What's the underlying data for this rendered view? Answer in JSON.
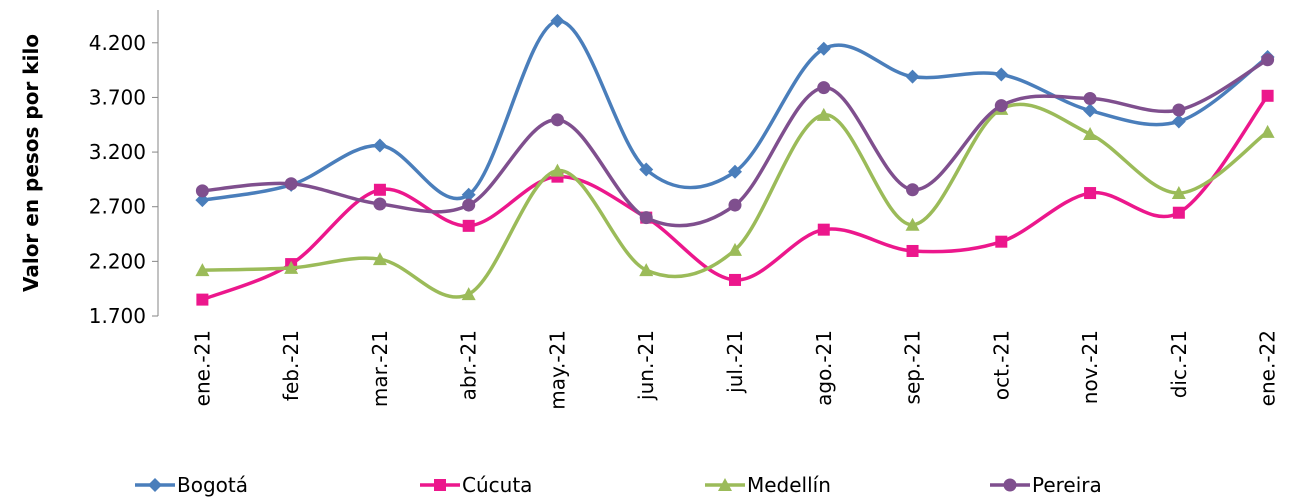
{
  "chart_data": {
    "type": "line",
    "y_label": "Valor en pesos por kilo",
    "categories": [
      "ene.-21",
      "feb.-21",
      "mar.-21",
      "abr.-21",
      "may.-21",
      "jun.-21",
      "jul.-21",
      "ago.-21",
      "sep.-21",
      "oct.-21",
      "nov.-21",
      "dic.-21",
      "ene.-22"
    ],
    "series": [
      {
        "name": "Bogotá",
        "color": "#4a7ebb",
        "marker": "diamond",
        "values": [
          2760,
          2900,
          3260,
          2810,
          4400,
          3040,
          3020,
          4145,
          3890,
          3910,
          3580,
          3480,
          4070
        ]
      },
      {
        "name": "Cúcuta",
        "color": "#ec178c",
        "marker": "square",
        "values": [
          1850,
          2175,
          2855,
          2525,
          2975,
          2600,
          2030,
          2490,
          2295,
          2380,
          2825,
          2645,
          3715
        ]
      },
      {
        "name": "Medellín",
        "color": "#9bbb59",
        "marker": "triangle",
        "values": [
          2120,
          2140,
          2220,
          1900,
          3030,
          2120,
          2305,
          3540,
          2535,
          3595,
          3365,
          2825,
          3385
        ]
      },
      {
        "name": "Pereira",
        "color": "#7f4f8e",
        "marker": "circle",
        "values": [
          2845,
          2910,
          2725,
          2715,
          3495,
          2600,
          2715,
          3790,
          2855,
          3625,
          3690,
          3585,
          4045
        ]
      }
    ],
    "ylim": [
      1700,
      4500
    ],
    "yticks": [
      {
        "value": 1700,
        "label": "1.700"
      },
      {
        "value": 2200,
        "label": "2.200"
      },
      {
        "value": 2700,
        "label": "2.700"
      },
      {
        "value": 3200,
        "label": "3.200"
      },
      {
        "value": 3700,
        "label": "3.700"
      },
      {
        "value": 4200,
        "label": "4.200"
      }
    ],
    "smooth": true,
    "grid": false,
    "legend": "bottom"
  }
}
